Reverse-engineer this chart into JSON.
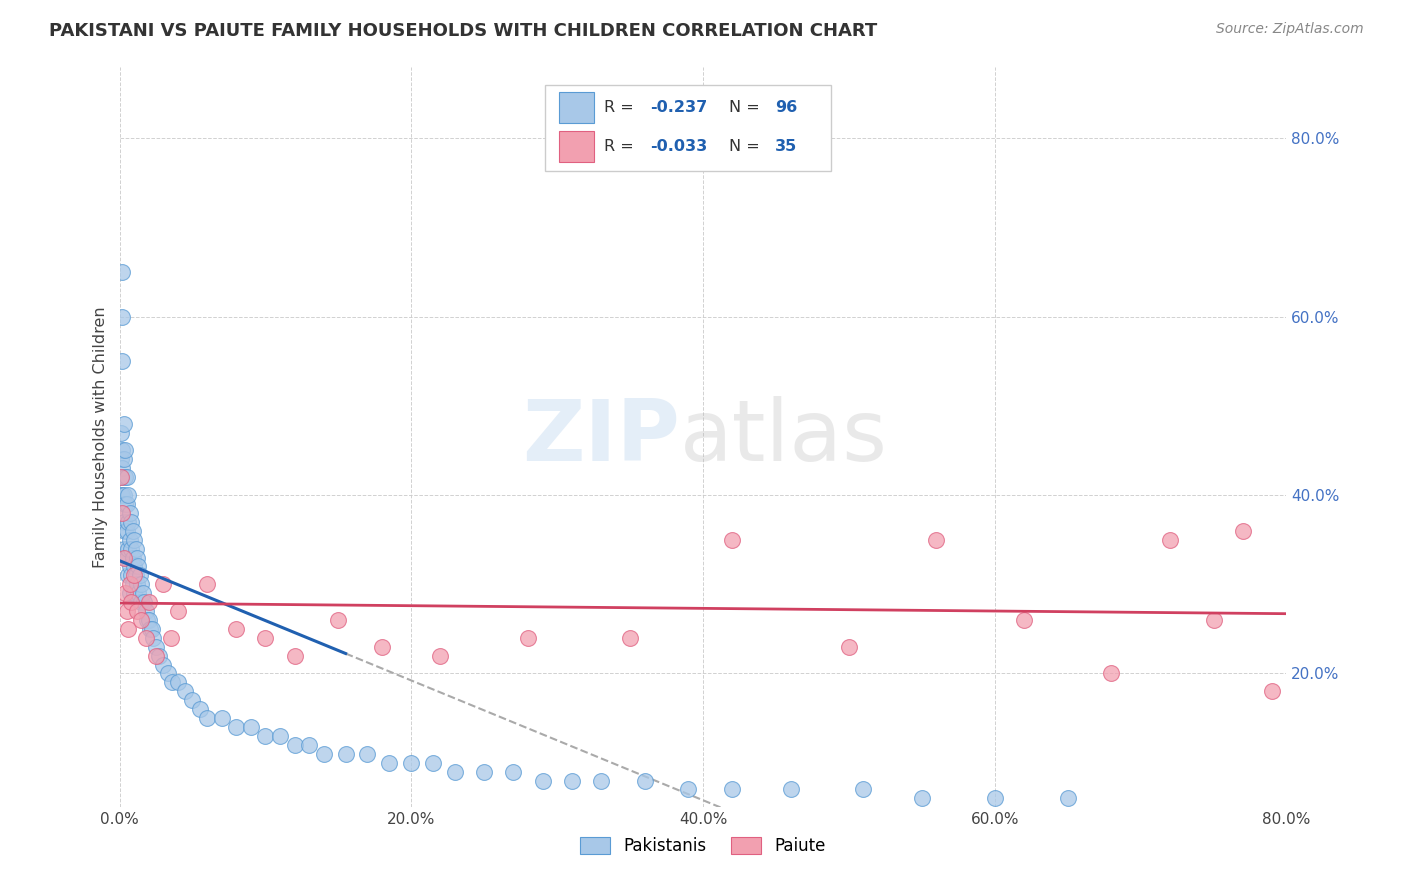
{
  "title": "PAKISTANI VS PAIUTE FAMILY HOUSEHOLDS WITH CHILDREN CORRELATION CHART",
  "source": "Source: ZipAtlas.com",
  "xlim": [
    0.0,
    0.8
  ],
  "ylim": [
    0.05,
    0.88
  ],
  "xticks": [
    0.0,
    0.2,
    0.4,
    0.6,
    0.8
  ],
  "xticklabels": [
    "0.0%",
    "20.0%",
    "40.0%",
    "60.0%",
    "80.0%"
  ],
  "yticks": [
    0.2,
    0.4,
    0.6,
    0.8
  ],
  "yticklabels": [
    "20.0%",
    "40.0%",
    "60.0%",
    "80.0%"
  ],
  "pakistani_R": -0.237,
  "pakistani_N": 96,
  "paiute_R": -0.033,
  "paiute_N": 35,
  "pakistani_color": "#A8C8E8",
  "paiute_color": "#F2A0B0",
  "pakistani_edge_color": "#5A9BD4",
  "paiute_edge_color": "#E06080",
  "pakistani_trend_color": "#2060B0",
  "paiute_trend_color": "#D04060",
  "tick_color": "#4472C4",
  "grid_color": "#CCCCCC",
  "ylabel": "Family Households with Children",
  "watermark_zip_color": "#A8C8E8",
  "watermark_atlas_color": "#B8B8B8",
  "pakistani_x": [
    0.001,
    0.001,
    0.001,
    0.001,
    0.001,
    0.002,
    0.002,
    0.002,
    0.002,
    0.002,
    0.002,
    0.003,
    0.003,
    0.003,
    0.003,
    0.003,
    0.004,
    0.004,
    0.004,
    0.004,
    0.004,
    0.005,
    0.005,
    0.005,
    0.005,
    0.006,
    0.006,
    0.006,
    0.006,
    0.007,
    0.007,
    0.007,
    0.007,
    0.008,
    0.008,
    0.008,
    0.009,
    0.009,
    0.009,
    0.01,
    0.01,
    0.01,
    0.011,
    0.011,
    0.012,
    0.012,
    0.013,
    0.013,
    0.014,
    0.015,
    0.015,
    0.016,
    0.017,
    0.018,
    0.019,
    0.02,
    0.021,
    0.022,
    0.023,
    0.025,
    0.027,
    0.03,
    0.033,
    0.036,
    0.04,
    0.045,
    0.05,
    0.055,
    0.06,
    0.07,
    0.08,
    0.09,
    0.1,
    0.11,
    0.12,
    0.13,
    0.14,
    0.155,
    0.17,
    0.185,
    0.2,
    0.215,
    0.23,
    0.25,
    0.27,
    0.29,
    0.31,
    0.33,
    0.36,
    0.39,
    0.42,
    0.46,
    0.51,
    0.55,
    0.6,
    0.65
  ],
  "pakistani_y": [
    0.47,
    0.44,
    0.42,
    0.4,
    0.38,
    0.65,
    0.6,
    0.55,
    0.45,
    0.43,
    0.4,
    0.48,
    0.44,
    0.4,
    0.37,
    0.34,
    0.45,
    0.42,
    0.39,
    0.36,
    0.33,
    0.42,
    0.39,
    0.36,
    0.33,
    0.4,
    0.37,
    0.34,
    0.31,
    0.38,
    0.35,
    0.32,
    0.29,
    0.37,
    0.34,
    0.31,
    0.36,
    0.33,
    0.3,
    0.35,
    0.32,
    0.29,
    0.34,
    0.31,
    0.33,
    0.3,
    0.32,
    0.29,
    0.31,
    0.3,
    0.28,
    0.29,
    0.28,
    0.27,
    0.26,
    0.26,
    0.25,
    0.25,
    0.24,
    0.23,
    0.22,
    0.21,
    0.2,
    0.19,
    0.19,
    0.18,
    0.17,
    0.16,
    0.15,
    0.15,
    0.14,
    0.14,
    0.13,
    0.13,
    0.12,
    0.12,
    0.11,
    0.11,
    0.11,
    0.1,
    0.1,
    0.1,
    0.09,
    0.09,
    0.09,
    0.08,
    0.08,
    0.08,
    0.08,
    0.07,
    0.07,
    0.07,
    0.07,
    0.06,
    0.06,
    0.06
  ],
  "paiute_x": [
    0.001,
    0.002,
    0.003,
    0.004,
    0.005,
    0.006,
    0.007,
    0.008,
    0.01,
    0.012,
    0.015,
    0.018,
    0.02,
    0.025,
    0.03,
    0.035,
    0.04,
    0.06,
    0.08,
    0.1,
    0.12,
    0.15,
    0.18,
    0.22,
    0.28,
    0.35,
    0.42,
    0.5,
    0.56,
    0.62,
    0.68,
    0.72,
    0.75,
    0.77,
    0.79
  ],
  "paiute_y": [
    0.42,
    0.38,
    0.33,
    0.29,
    0.27,
    0.25,
    0.3,
    0.28,
    0.31,
    0.27,
    0.26,
    0.24,
    0.28,
    0.22,
    0.3,
    0.24,
    0.27,
    0.3,
    0.25,
    0.24,
    0.22,
    0.26,
    0.23,
    0.22,
    0.24,
    0.24,
    0.35,
    0.23,
    0.35,
    0.26,
    0.2,
    0.35,
    0.26,
    0.36,
    0.18
  ]
}
